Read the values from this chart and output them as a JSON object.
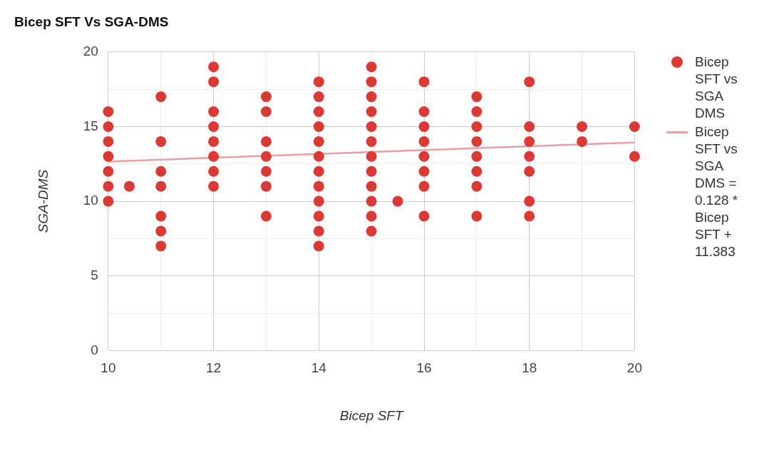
{
  "chart_data": {
    "type": "scatter",
    "title": "Bicep SFT Vs SGA-DMS",
    "xlabel": "Bicep SFT",
    "ylabel": "SGA-DMS",
    "xlim": [
      10,
      20
    ],
    "xticks": [
      10,
      {
        "value": 11,
        "label": null
      },
      12,
      {
        "value": 13,
        "label": null
      },
      14,
      {
        "value": 15,
        "label": null
      },
      16,
      {
        "value": 17,
        "label": null
      },
      18,
      {
        "value": 19,
        "label": null
      },
      20
    ],
    "ylim": [
      0,
      20
    ],
    "yticks": [
      0,
      {
        "value": 2.5,
        "label": null
      },
      5,
      {
        "value": 7.5,
        "label": null
      },
      10,
      {
        "value": 12.5,
        "label": null
      },
      15,
      {
        "value": 17.5,
        "label": null
      },
      20
    ],
    "grid": true,
    "legend": "right",
    "series": [
      {
        "name": "Bicep SFT vs SGA DMS",
        "color": "#db3a34",
        "marker": "circle",
        "x": [
          10,
          10,
          10,
          10,
          10,
          10,
          10,
          10.4,
          11,
          11,
          11,
          11,
          11,
          11,
          11,
          12,
          12,
          12,
          12,
          12,
          12,
          12,
          12,
          13,
          13,
          13,
          13,
          13,
          13,
          13,
          14,
          14,
          14,
          14,
          14,
          14,
          14,
          14,
          14,
          14,
          14,
          14,
          15,
          15,
          15,
          15,
          15,
          15,
          15,
          15,
          15,
          15,
          15,
          15,
          15.5,
          16,
          16,
          16,
          16,
          16,
          16,
          16,
          16,
          17,
          17,
          17,
          17,
          17,
          17,
          17,
          17,
          18,
          18,
          18,
          18,
          18,
          18,
          18,
          19,
          19,
          20,
          20
        ],
        "values": [
          16,
          15,
          14,
          13,
          12,
          11,
          10,
          11,
          17,
          14,
          12,
          11,
          9,
          8,
          7,
          19,
          18,
          16,
          15,
          14,
          13,
          12,
          11,
          17,
          16,
          14,
          13,
          12,
          11,
          9,
          18,
          17,
          16,
          15,
          14,
          13,
          12,
          11,
          10,
          9,
          8,
          7,
          19,
          18,
          17,
          16,
          15,
          14,
          13,
          12,
          11,
          10,
          9,
          8,
          10,
          18,
          16,
          15,
          14,
          13,
          12,
          11,
          9,
          17,
          16,
          15,
          14,
          13,
          12,
          11,
          9,
          18,
          15,
          14,
          13,
          12,
          10,
          9,
          15,
          14,
          15,
          13
        ]
      },
      {
        "name": "Bicep SFT vs SGA DMS = 0.128 * Bicep SFT + 11.383",
        "color": "#e8a0a0",
        "type": "line",
        "marker": "none",
        "x": [
          10,
          20
        ],
        "values": [
          12.66,
          13.94
        ]
      }
    ]
  }
}
